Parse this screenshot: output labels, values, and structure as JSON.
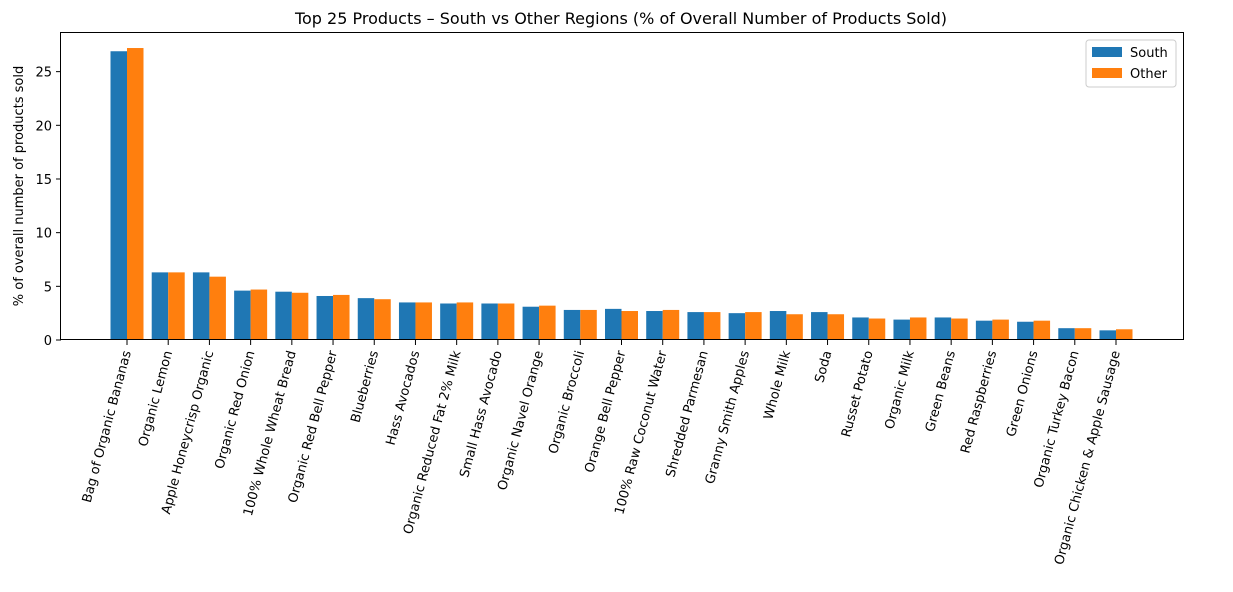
{
  "chart_data": {
    "type": "bar",
    "title": "Top 25 Products – South vs Other Regions (% of Overall Number of Products Sold)",
    "xlabel": "",
    "ylabel": "% of overall number of products sold",
    "ylim": [
      0,
      28.6
    ],
    "yticks": [
      0,
      5,
      10,
      15,
      20,
      25
    ],
    "grid": false,
    "legend_position": "top-right",
    "categories": [
      "Bag of Organic Bananas",
      "Organic Lemon",
      "Apple Honeycrisp Organic",
      "Organic Red Onion",
      "100% Whole Wheat Bread",
      "Organic Red Bell Pepper",
      "Blueberries",
      "Hass Avocados",
      "Organic Reduced Fat 2% Milk",
      "Small Hass Avocado",
      "Organic Navel Orange",
      "Organic Broccoli",
      "Orange Bell Pepper",
      "100% Raw Coconut Water",
      "Shredded Parmesan",
      "Granny Smith Apples",
      "Whole Milk",
      "Soda",
      "Russet Potato",
      "Organic Milk",
      "Green Beans",
      "Red Raspberries",
      "Green Onions",
      "Organic Turkey Bacon",
      "Organic Chicken & Apple Sausage"
    ],
    "series": [
      {
        "name": "South",
        "color": "#1f77b4",
        "values": [
          26.9,
          6.3,
          6.3,
          4.6,
          4.5,
          4.1,
          3.9,
          3.5,
          3.4,
          3.4,
          3.1,
          2.8,
          2.9,
          2.7,
          2.6,
          2.5,
          2.7,
          2.6,
          2.1,
          1.9,
          2.1,
          1.8,
          1.7,
          1.1,
          0.9
        ]
      },
      {
        "name": "Other",
        "color": "#ff7f0e",
        "values": [
          27.2,
          6.3,
          5.9,
          4.7,
          4.4,
          4.2,
          3.8,
          3.5,
          3.5,
          3.4,
          3.2,
          2.8,
          2.7,
          2.8,
          2.6,
          2.6,
          2.4,
          2.4,
          2.0,
          2.1,
          2.0,
          1.9,
          1.8,
          1.1,
          1.0
        ]
      }
    ]
  }
}
